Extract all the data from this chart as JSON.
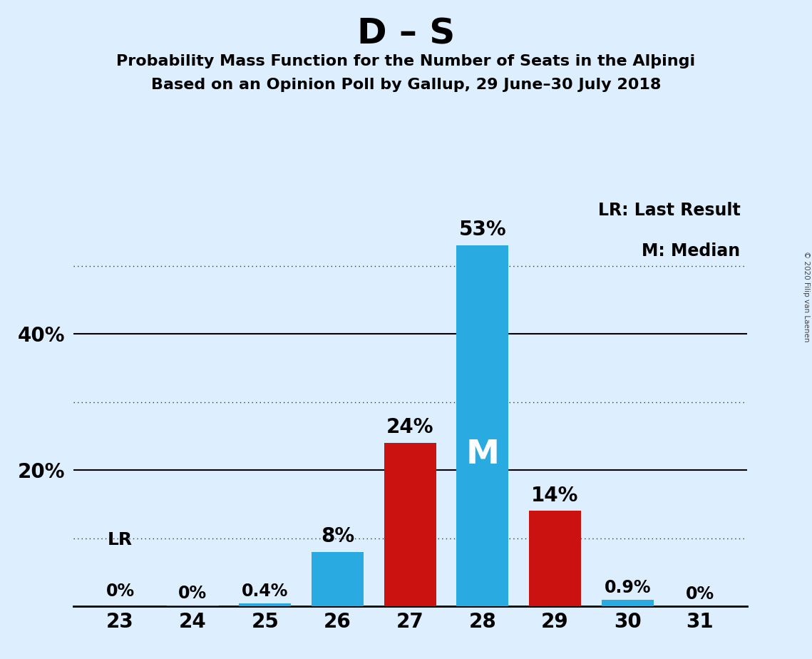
{
  "title": "D – S",
  "subtitle_line1": "Probability Mass Function for the Number of Seats in the Alþingi",
  "subtitle_line2": "Based on an Opinion Poll by Gallup, 29 June–30 July 2018",
  "copyright": "© 2020 Filip van Laenen",
  "seats": [
    23,
    24,
    25,
    26,
    27,
    28,
    29,
    30,
    31
  ],
  "values": [
    0.0,
    0.15,
    0.4,
    8.0,
    24.0,
    53.0,
    14.0,
    0.9,
    0.05
  ],
  "bar_colors": [
    "#29ABE2",
    "#CC1111",
    "#29ABE2",
    "#29ABE2",
    "#CC1111",
    "#29ABE2",
    "#CC1111",
    "#29ABE2",
    "#CC1111"
  ],
  "labels": [
    "0%",
    "0%",
    "0.4%",
    "8%",
    "24%",
    "53%",
    "14%",
    "0.9%",
    "0%"
  ],
  "median_seat": 28,
  "lr_seat": 23,
  "legend_lr": "LR: Last Result",
  "legend_m": "M: Median",
  "background_color": "#DDEEFF",
  "ylim_max": 60,
  "solid_gridlines": [
    20,
    40
  ],
  "dotted_gridlines": [
    10,
    30,
    50
  ],
  "bar_width": 0.72
}
